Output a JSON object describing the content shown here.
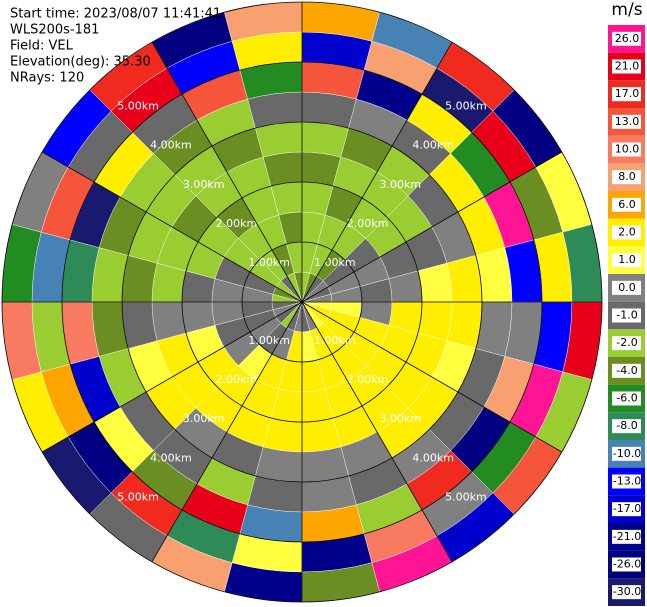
{
  "chart_data": {
    "type": "ppi",
    "header": [
      "Start time: 2023/08/07 11:41:41",
      "WLS200s-181",
      "Field: VEL",
      "Elevation(deg): 35.30",
      "NRays: 120"
    ],
    "colorbar_title": "m/s",
    "colorbar": [
      {
        "value": 26,
        "label": "26.0",
        "color": "#ff1493"
      },
      {
        "value": 21,
        "label": "21.0",
        "color": "#e8001a"
      },
      {
        "value": 17,
        "label": "17.0",
        "color": "#f02a1e"
      },
      {
        "value": 13,
        "label": "13.0",
        "color": "#f5553a"
      },
      {
        "value": 10,
        "label": "10.0",
        "color": "#f87a60"
      },
      {
        "value": 8,
        "label": "8.0",
        "color": "#f8a070"
      },
      {
        "value": 6,
        "label": "6.0",
        "color": "#ffa500"
      },
      {
        "value": 2,
        "label": "2.0",
        "color": "#ffee00"
      },
      {
        "value": 1,
        "label": "1.0",
        "color": "#ffff40"
      },
      {
        "value": 0,
        "label": "0.0",
        "color": "#808080"
      },
      {
        "value": -1,
        "label": "-1.0",
        "color": "#696969"
      },
      {
        "value": -2,
        "label": "-2.0",
        "color": "#9acd32"
      },
      {
        "value": -4,
        "label": "-4.0",
        "color": "#6b8e23"
      },
      {
        "value": -6,
        "label": "-6.0",
        "color": "#228b22"
      },
      {
        "value": -8,
        "label": "-8.0",
        "color": "#2e8b57"
      },
      {
        "value": -10,
        "label": "-10.0",
        "color": "#4682b4"
      },
      {
        "value": -13,
        "label": "-13.0",
        "color": "#0000ff"
      },
      {
        "value": -17,
        "label": "-17.0",
        "color": "#0000cd"
      },
      {
        "value": -21,
        "label": "-21.0",
        "color": "#00008b"
      },
      {
        "value": -26,
        "label": "-26.0",
        "color": "#000080"
      },
      {
        "value": -30,
        "label": "-30.0",
        "color": "#191970"
      }
    ],
    "range_rings": [
      {
        "value": 1,
        "label": "1.00km"
      },
      {
        "value": 2,
        "label": "2.00km"
      },
      {
        "value": 3,
        "label": "3.00km"
      },
      {
        "value": 4,
        "label": "4.00km"
      },
      {
        "value": 5,
        "label": "5.00km"
      }
    ],
    "gate_km": 0.5,
    "azimuth_step_deg": 15,
    "values": [
      [
        -2,
        -4,
        -1,
        0,
        -1,
        0,
        1,
        2,
        2,
        1,
        0,
        -1,
        0,
        -1,
        -2,
        -1,
        0,
        -1,
        -2,
        -4,
        -2,
        -1,
        -2,
        -4
      ],
      [
        -2,
        -2,
        -4,
        -1,
        0,
        0,
        1,
        2,
        2,
        2,
        2,
        1,
        2,
        0,
        -1,
        0,
        -1,
        -1,
        0,
        -1,
        -2,
        -2,
        -4,
        -2
      ],
      [
        -2,
        -2,
        -2,
        -1,
        0,
        -1,
        0,
        2,
        2,
        2,
        2,
        2,
        2,
        2,
        1,
        0,
        -1,
        0,
        0,
        -1,
        -2,
        -2,
        -2,
        -4
      ],
      [
        -2,
        -4,
        -2,
        -2,
        -1,
        0,
        2,
        2,
        2,
        2,
        2,
        2,
        2,
        2,
        2,
        2,
        1,
        0,
        -1,
        -2,
        -2,
        -4,
        -2,
        -2
      ],
      [
        -4,
        -2,
        -2,
        -2,
        -1,
        1,
        2,
        2,
        2,
        2,
        2,
        2,
        2,
        2,
        2,
        2,
        2,
        0,
        -2,
        -2,
        -4,
        -2,
        -2,
        -4
      ],
      [
        -2,
        -4,
        -2,
        -1,
        0,
        2,
        2,
        1,
        2,
        2,
        0,
        0,
        0,
        -1,
        0,
        2,
        1,
        -1,
        -4,
        -2,
        -2,
        -2,
        -4,
        -2
      ],
      [
        -1,
        0,
        -1,
        2,
        2,
        1,
        0,
        -1,
        -1,
        0,
        -1,
        0,
        -1,
        -2,
        -1,
        -1,
        -2,
        -4,
        -2,
        -4,
        -2,
        -4,
        -2,
        -1
      ],
      [
        13,
        -21,
        2,
        -6,
        26,
        -13,
        0,
        8,
        -26,
        17,
        -2,
        6,
        -10,
        21,
        -4,
        1,
        -17,
        10,
        -8,
        -30,
        2,
        -1,
        13,
        -6
      ],
      [
        -17,
        8,
        -30,
        21,
        -4,
        2,
        -13,
        26,
        -6,
        0,
        10,
        -21,
        1,
        -8,
        17,
        -26,
        6,
        -2,
        -10,
        13,
        -1,
        21,
        -13,
        2
      ],
      [
        6,
        -10,
        17,
        -26,
        1,
        -8,
        21,
        -2,
        13,
        -17,
        26,
        -4,
        -21,
        8,
        -1,
        -30,
        2,
        10,
        -6,
        0,
        -13,
        17,
        -26,
        8
      ]
    ]
  }
}
